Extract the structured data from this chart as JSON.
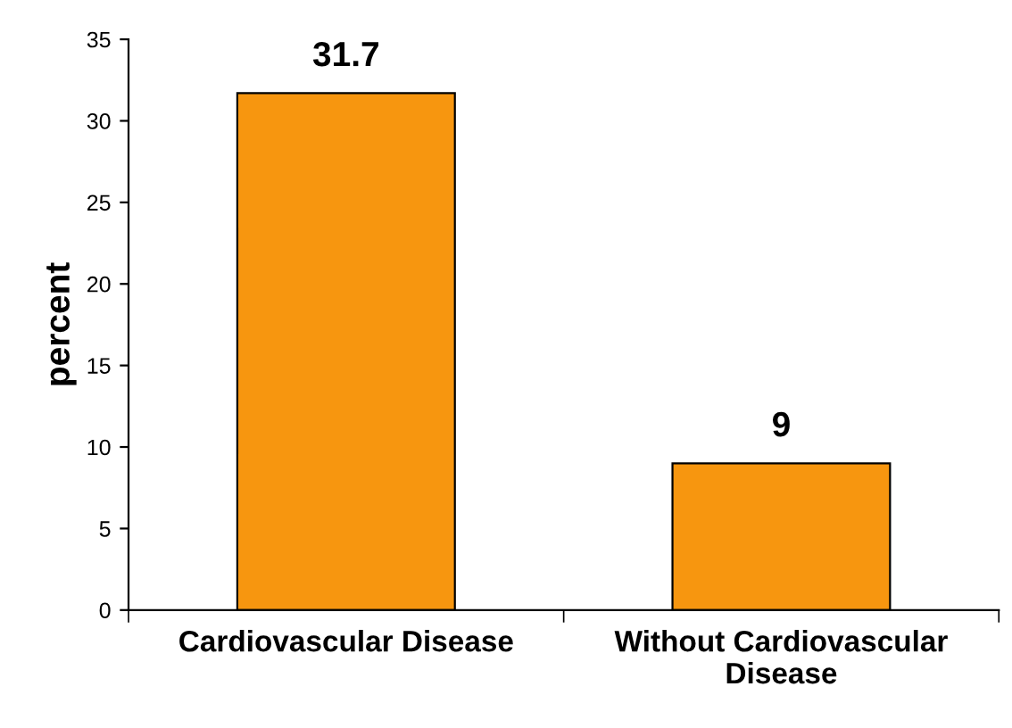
{
  "chart_data": {
    "type": "bar",
    "ylabel": "percent",
    "categories": [
      "Cardiovascular Disease",
      "Without Cardiovascular\nDisease"
    ],
    "values": [
      31.7,
      9
    ],
    "color": "#f7960f",
    "ylim": [
      0,
      35
    ],
    "yticks": [
      0,
      5,
      10,
      15,
      20,
      25,
      30,
      35
    ],
    "data_labels": true,
    "grid": false,
    "legend": false
  }
}
